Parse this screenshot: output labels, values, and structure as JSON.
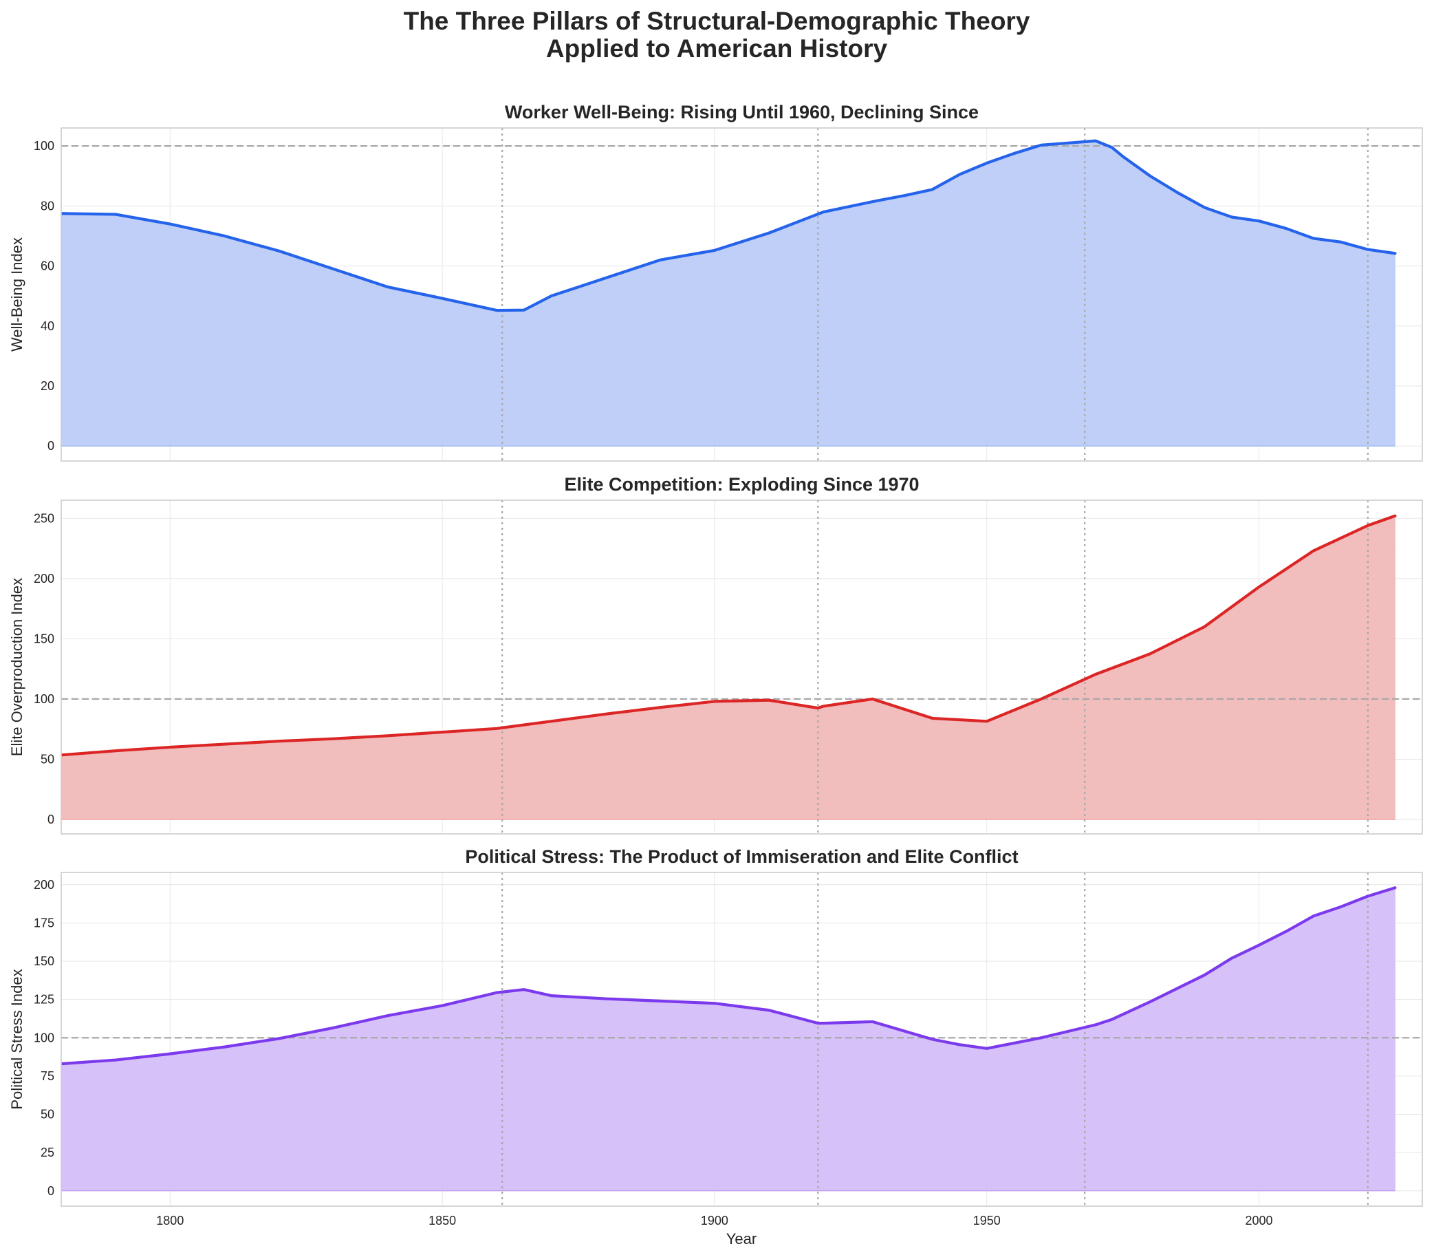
{
  "figure": {
    "title_line1": "The Three Pillars of Structural-Demographic Theory",
    "title_line2": "Applied to American History",
    "xlabel": "Year"
  },
  "chart_data": [
    {
      "type": "area",
      "title": "Worker Well-Being: Rising Until 1960, Declining Since",
      "xlabel": "Year",
      "ylabel": "Well-Being Index",
      "color": "#2563eb",
      "fill_color": "#bccdf7",
      "xlim": [
        1780,
        2030
      ],
      "ylim": [
        -5,
        106
      ],
      "yticks": [
        0,
        20,
        40,
        60,
        80,
        100
      ],
      "reference_line": 100,
      "vlines": [
        1861,
        1919,
        1968,
        2020
      ],
      "x": [
        1780,
        1790,
        1800,
        1810,
        1820,
        1830,
        1840,
        1850,
        1860,
        1865,
        1870,
        1875,
        1880,
        1890,
        1900,
        1910,
        1920,
        1930,
        1935,
        1940,
        1945,
        1950,
        1955,
        1960,
        1965,
        1970,
        1973,
        1975,
        1980,
        1985,
        1990,
        1995,
        2000,
        2005,
        2010,
        2015,
        2020,
        2025
      ],
      "y": [
        77.5,
        77.2,
        74,
        70,
        65,
        59,
        53,
        49.2,
        45.2,
        45.3,
        50,
        53,
        56,
        62,
        65.2,
        71,
        78,
        81.8,
        83.5,
        85.5,
        90.5,
        94.3,
        97.5,
        100.3,
        101,
        101.7,
        99.5,
        96.5,
        90,
        84.5,
        79.5,
        76.3,
        75,
        72.5,
        69.2,
        68,
        65.5,
        64.2
      ]
    },
    {
      "type": "area",
      "title": "Elite Competition: Exploding Since 1970",
      "xlabel": "Year",
      "ylabel": "Elite Overproduction Index",
      "color": "#dc2626",
      "fill_color": "#f2baba",
      "xlim": [
        1780,
        2030
      ],
      "ylim": [
        -12,
        265
      ],
      "yticks": [
        0,
        50,
        100,
        150,
        200,
        250
      ],
      "reference_line": 100,
      "vlines": [
        1861,
        1919,
        1968,
        2020
      ],
      "x": [
        1780,
        1790,
        1800,
        1810,
        1820,
        1830,
        1840,
        1850,
        1860,
        1870,
        1880,
        1890,
        1900,
        1910,
        1919,
        1920,
        1929,
        1940,
        1950,
        1960,
        1970,
        1980,
        1990,
        2000,
        2010,
        2020,
        2025
      ],
      "y": [
        53.5,
        57,
        60,
        62.5,
        65,
        67,
        69.5,
        72.5,
        75.5,
        81.5,
        87.5,
        93,
        98,
        99,
        92.5,
        94,
        100,
        84,
        81.5,
        100,
        120.5,
        137.5,
        160,
        193,
        223,
        244,
        252
      ]
    },
    {
      "type": "area",
      "title": "Political Stress: The Product of Immiseration and Elite Conflict",
      "xlabel": "Year",
      "ylabel": "Political Stress Index",
      "color": "#7c3aed",
      "fill_color": "#d4bff8",
      "xlim": [
        1780,
        2030
      ],
      "ylim": [
        -10,
        208
      ],
      "yticks": [
        0,
        25,
        50,
        75,
        100,
        125,
        150,
        175,
        200
      ],
      "reference_line": 100,
      "vlines": [
        1861,
        1919,
        1968,
        2020
      ],
      "x": [
        1780,
        1790,
        1800,
        1810,
        1820,
        1830,
        1840,
        1850,
        1860,
        1865,
        1870,
        1880,
        1890,
        1900,
        1910,
        1919,
        1920,
        1929,
        1940,
        1945,
        1950,
        1960,
        1970,
        1973,
        1980,
        1990,
        1995,
        2000,
        2005,
        2010,
        2015,
        2020,
        2025
      ],
      "y": [
        83,
        85.5,
        89.5,
        94,
        99.5,
        106.5,
        114.5,
        121,
        129.5,
        131.5,
        127.5,
        125.5,
        124,
        122.5,
        118,
        109.5,
        109.5,
        110.5,
        99,
        95.5,
        93,
        100,
        108.5,
        112,
        123.5,
        141,
        152,
        160.5,
        169.5,
        179.5,
        185.5,
        192.5,
        198
      ]
    }
  ],
  "x_ticks": [
    1800,
    1850,
    1900,
    1950,
    2000
  ]
}
